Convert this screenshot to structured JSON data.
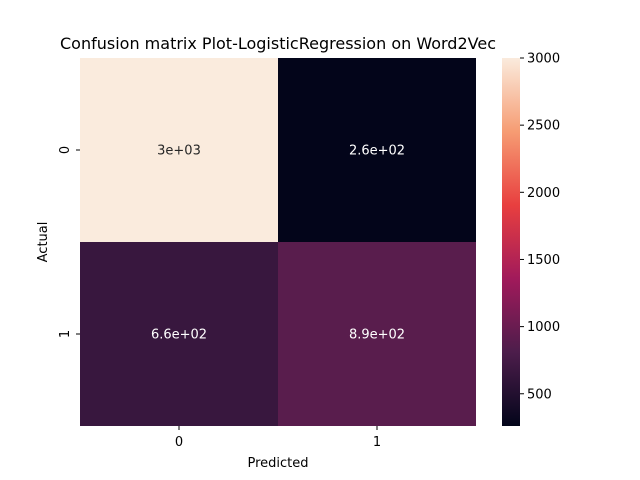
{
  "chart_data": {
    "type": "heatmap",
    "title": "Confusion matrix Plot-LogisticRegression on Word2Vec",
    "xlabel": "Predicted",
    "ylabel": "Actual",
    "x_categories": [
      "0",
      "1"
    ],
    "y_categories": [
      "0",
      "1"
    ],
    "values": [
      [
        3000,
        260
      ],
      [
        660,
        890
      ]
    ],
    "annotations": [
      [
        "3e+03",
        "2.6e+02"
      ],
      [
        "6.6e+02",
        "8.9e+02"
      ]
    ],
    "colorbar": {
      "ticks": [
        "3000",
        "2500",
        "2000",
        "1500",
        "1000",
        "500"
      ],
      "tick_values": [
        3000,
        2500,
        2000,
        1500,
        1000,
        500
      ],
      "range": [
        260,
        3000
      ]
    },
    "colormap": "rocket",
    "colors": [
      "#03051a",
      "#4c1d4b",
      "#a11a5b",
      "#e83f3f",
      "#f69c73",
      "#faebdd"
    ]
  }
}
